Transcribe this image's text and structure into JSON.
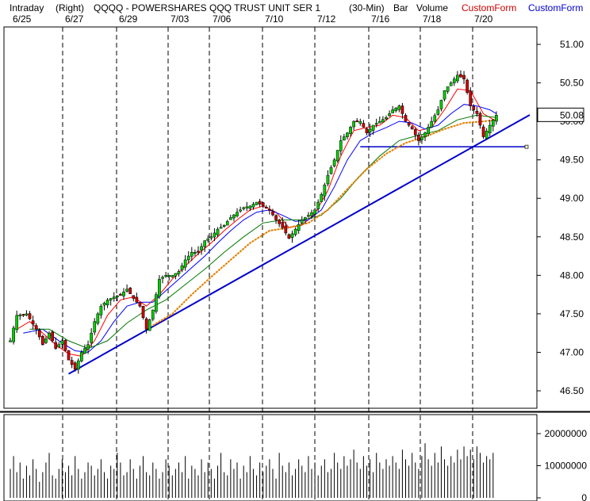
{
  "header": {
    "mode": "Intraday",
    "scale_side": "(Right)",
    "symbol_title": "QQQQ - POWERSHARES QQQ TRUST UNIT SER 1",
    "interval": "(30-Min)",
    "bar_label": "Bar",
    "volume_label": "Volume",
    "custom1_label": "CustomForm",
    "custom2_label": "CustomForm"
  },
  "colors": {
    "background": "#ffffff",
    "up_candle": "#00cc00",
    "down_candle": "#cc0000",
    "ma_fast": "#ff0000",
    "ma_mid": "#0000ff",
    "ma_slow": "#007700",
    "ma_long": "#e08000",
    "trendline": "#0000cc",
    "custom1": "#cc0000",
    "custom2": "#0000cc"
  },
  "chart_data": {
    "type": "candlestick",
    "x_label_dates": [
      "6/25",
      "6/27",
      "6/29",
      "7/03",
      "7/06",
      "7/10",
      "7/12",
      "7/16",
      "7/18",
      "7/20"
    ],
    "session_divider_dates": [
      "6/27",
      "6/29",
      "7/03",
      "7/06",
      "7/10",
      "7/12",
      "7/16",
      "7/18",
      "7/20"
    ],
    "price_axis": {
      "ticks": [
        "51.00",
        "50.50",
        "50.00",
        "49.50",
        "49.00",
        "48.50",
        "48.00",
        "47.50",
        "47.00",
        "46.50"
      ],
      "range": [
        46.2,
        51.35
      ],
      "last_price_label": "50.08"
    },
    "volume_axis": {
      "ticks": [
        "20000000",
        "10000000",
        "0"
      ],
      "range": [
        0,
        24000000
      ]
    },
    "price_path": [
      [
        0,
        47.15
      ],
      [
        2,
        47.48
      ],
      [
        5,
        47.5
      ],
      [
        8,
        47.3
      ],
      [
        10,
        47.1
      ],
      [
        12,
        47.25
      ],
      [
        14,
        47.05
      ],
      [
        16,
        47.15
      ],
      [
        18,
        46.9
      ],
      [
        20,
        46.78
      ],
      [
        22,
        47.0
      ],
      [
        24,
        47.1
      ],
      [
        26,
        47.4
      ],
      [
        28,
        47.6
      ],
      [
        30,
        47.68
      ],
      [
        32,
        47.72
      ],
      [
        34,
        47.75
      ],
      [
        36,
        47.82
      ],
      [
        38,
        47.7
      ],
      [
        40,
        47.6
      ],
      [
        42,
        47.3
      ],
      [
        44,
        47.55
      ],
      [
        46,
        47.95
      ],
      [
        48,
        48.0
      ],
      [
        50,
        48.0
      ],
      [
        52,
        48.05
      ],
      [
        54,
        48.2
      ],
      [
        56,
        48.3
      ],
      [
        58,
        48.3
      ],
      [
        60,
        48.45
      ],
      [
        62,
        48.5
      ],
      [
        64,
        48.6
      ],
      [
        66,
        48.65
      ],
      [
        68,
        48.75
      ],
      [
        70,
        48.82
      ],
      [
        72,
        48.88
      ],
      [
        74,
        48.9
      ],
      [
        76,
        48.95
      ],
      [
        78,
        48.9
      ],
      [
        80,
        48.85
      ],
      [
        82,
        48.72
      ],
      [
        84,
        48.62
      ],
      [
        86,
        48.48
      ],
      [
        88,
        48.6
      ],
      [
        90,
        48.72
      ],
      [
        92,
        48.78
      ],
      [
        94,
        48.85
      ],
      [
        96,
        49.05
      ],
      [
        98,
        49.3
      ],
      [
        100,
        49.5
      ],
      [
        102,
        49.75
      ],
      [
        104,
        49.85
      ],
      [
        106,
        50.0
      ],
      [
        108,
        50.0
      ],
      [
        110,
        49.85
      ],
      [
        112,
        49.95
      ],
      [
        114,
        50.0
      ],
      [
        116,
        50.05
      ],
      [
        118,
        50.15
      ],
      [
        120,
        50.2
      ],
      [
        122,
        50.0
      ],
      [
        124,
        49.9
      ],
      [
        126,
        49.75
      ],
      [
        128,
        49.85
      ],
      [
        130,
        50.0
      ],
      [
        132,
        50.15
      ],
      [
        134,
        50.4
      ],
      [
        136,
        50.5
      ],
      [
        138,
        50.6
      ],
      [
        140,
        50.55
      ],
      [
        142,
        50.2
      ],
      [
        144,
        50.1
      ],
      [
        146,
        49.8
      ],
      [
        148,
        49.95
      ],
      [
        150,
        50.08
      ]
    ],
    "ma_fast_path": [
      [
        2,
        47.3
      ],
      [
        6,
        47.4
      ],
      [
        10,
        47.25
      ],
      [
        14,
        47.1
      ],
      [
        18,
        46.98
      ],
      [
        22,
        46.95
      ],
      [
        26,
        47.15
      ],
      [
        30,
        47.48
      ],
      [
        34,
        47.68
      ],
      [
        38,
        47.72
      ],
      [
        42,
        47.6
      ],
      [
        46,
        47.75
      ],
      [
        50,
        47.95
      ],
      [
        54,
        48.12
      ],
      [
        58,
        48.28
      ],
      [
        62,
        48.42
      ],
      [
        66,
        48.58
      ],
      [
        70,
        48.72
      ],
      [
        74,
        48.85
      ],
      [
        78,
        48.9
      ],
      [
        82,
        48.82
      ],
      [
        86,
        48.62
      ],
      [
        90,
        48.65
      ],
      [
        94,
        48.8
      ],
      [
        98,
        49.1
      ],
      [
        102,
        49.55
      ],
      [
        106,
        49.88
      ],
      [
        110,
        49.92
      ],
      [
        114,
        49.95
      ],
      [
        118,
        50.08
      ],
      [
        122,
        50.05
      ],
      [
        126,
        49.88
      ],
      [
        130,
        49.92
      ],
      [
        134,
        50.15
      ],
      [
        138,
        50.42
      ],
      [
        142,
        50.4
      ],
      [
        146,
        50.1
      ],
      [
        150,
        50.0
      ]
    ],
    "ma_mid_path": [
      [
        4,
        47.25
      ],
      [
        10,
        47.3
      ],
      [
        16,
        47.12
      ],
      [
        20,
        47.02
      ],
      [
        24,
        47.0
      ],
      [
        28,
        47.15
      ],
      [
        32,
        47.4
      ],
      [
        36,
        47.6
      ],
      [
        40,
        47.65
      ],
      [
        44,
        47.65
      ],
      [
        48,
        47.8
      ],
      [
        52,
        47.95
      ],
      [
        56,
        48.1
      ],
      [
        60,
        48.25
      ],
      [
        64,
        48.42
      ],
      [
        68,
        48.58
      ],
      [
        72,
        48.72
      ],
      [
        76,
        48.82
      ],
      [
        80,
        48.85
      ],
      [
        84,
        48.78
      ],
      [
        88,
        48.7
      ],
      [
        92,
        48.72
      ],
      [
        96,
        48.85
      ],
      [
        100,
        49.15
      ],
      [
        104,
        49.5
      ],
      [
        108,
        49.75
      ],
      [
        112,
        49.85
      ],
      [
        116,
        49.92
      ],
      [
        120,
        50.0
      ],
      [
        124,
        49.98
      ],
      [
        128,
        49.9
      ],
      [
        132,
        49.95
      ],
      [
        136,
        50.1
      ],
      [
        140,
        50.22
      ],
      [
        144,
        50.2
      ],
      [
        148,
        50.15
      ],
      [
        150,
        50.1
      ]
    ],
    "ma_slow_path": [
      [
        6,
        47.3
      ],
      [
        12,
        47.3
      ],
      [
        18,
        47.15
      ],
      [
        24,
        47.05
      ],
      [
        30,
        47.15
      ],
      [
        36,
        47.38
      ],
      [
        42,
        47.55
      ],
      [
        48,
        47.68
      ],
      [
        54,
        47.88
      ],
      [
        60,
        48.08
      ],
      [
        66,
        48.3
      ],
      [
        72,
        48.5
      ],
      [
        78,
        48.68
      ],
      [
        84,
        48.72
      ],
      [
        90,
        48.72
      ],
      [
        96,
        48.78
      ],
      [
        102,
        49.0
      ],
      [
        108,
        49.3
      ],
      [
        114,
        49.55
      ],
      [
        120,
        49.75
      ],
      [
        126,
        49.82
      ],
      [
        132,
        49.88
      ],
      [
        138,
        50.02
      ],
      [
        144,
        50.08
      ],
      [
        150,
        50.05
      ]
    ],
    "ma_long_path": [
      [
        44,
        47.35
      ],
      [
        50,
        47.5
      ],
      [
        56,
        47.75
      ],
      [
        62,
        47.98
      ],
      [
        68,
        48.2
      ],
      [
        74,
        48.42
      ],
      [
        80,
        48.58
      ],
      [
        86,
        48.62
      ],
      [
        92,
        48.68
      ],
      [
        98,
        48.85
      ],
      [
        104,
        49.12
      ],
      [
        110,
        49.38
      ],
      [
        116,
        49.58
      ],
      [
        122,
        49.72
      ],
      [
        128,
        49.8
      ],
      [
        134,
        49.9
      ],
      [
        140,
        49.98
      ],
      [
        146,
        50.0
      ],
      [
        150,
        50.02
      ]
    ],
    "trendlines": [
      {
        "from": [
          18,
          46.72
        ],
        "to": [
          152,
          50.05
        ]
      },
      {
        "from": [
          108,
          49.67
        ],
        "to": [
          152,
          49.67
        ]
      }
    ],
    "volume_bars": [
      9,
      13,
      8,
      11,
      6,
      10,
      7,
      12,
      9,
      5,
      8,
      11,
      14,
      7,
      6,
      9,
      12,
      8,
      10,
      7,
      13,
      9,
      6,
      8,
      11,
      10,
      7,
      9,
      12,
      8,
      6,
      10,
      9,
      14,
      11,
      7,
      8,
      12,
      9,
      6,
      10,
      13,
      8,
      7,
      11,
      9,
      6,
      8,
      12,
      10,
      7,
      9,
      11,
      8,
      13,
      6,
      10,
      9,
      7,
      12,
      8,
      11,
      9,
      6,
      10,
      14,
      8,
      7,
      12,
      9,
      11,
      6,
      10,
      8,
      13,
      9,
      7,
      11,
      8,
      10,
      12,
      9,
      6,
      14,
      10,
      8,
      11,
      7,
      9,
      12,
      10,
      8,
      13,
      9,
      11,
      7,
      10,
      12,
      8,
      9,
      14,
      11,
      9,
      13,
      10,
      12,
      15,
      11,
      9,
      13,
      10,
      12,
      8,
      14,
      11,
      9,
      12,
      10,
      13,
      11,
      9,
      15,
      12,
      10,
      14,
      11,
      9,
      13,
      17,
      12,
      10,
      14,
      11,
      16,
      12,
      10,
      13,
      11,
      15,
      12,
      16,
      13,
      15,
      12,
      16,
      14,
      11,
      13,
      12,
      14
    ]
  }
}
